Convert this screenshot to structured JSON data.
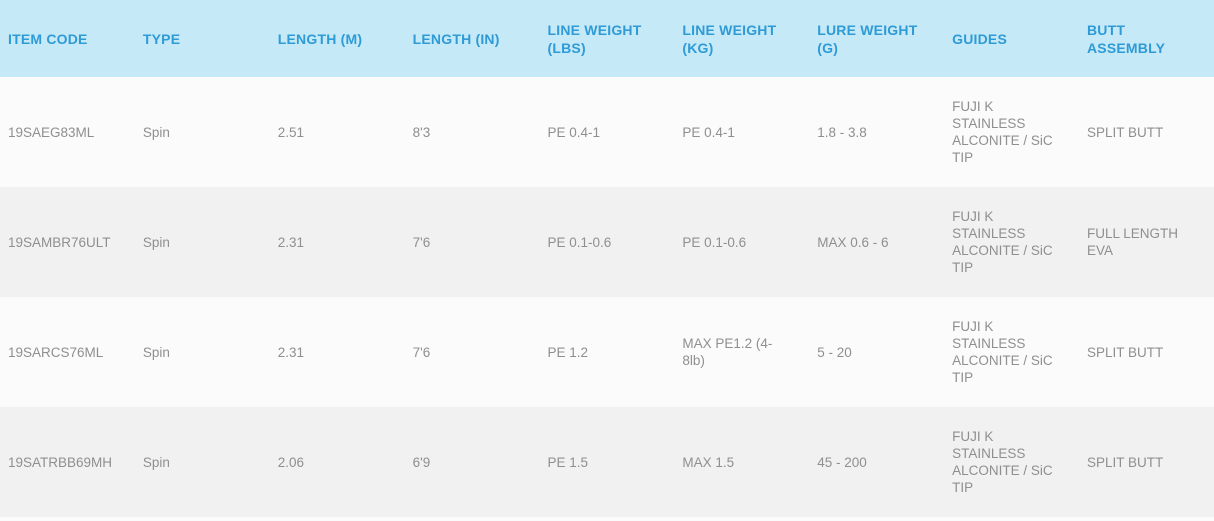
{
  "table": {
    "columns": [
      {
        "key": "item_code",
        "label": "ITEM CODE"
      },
      {
        "key": "type",
        "label": "TYPE"
      },
      {
        "key": "length_m",
        "label": "LENGTH (M)"
      },
      {
        "key": "length_in",
        "label": "LENGTH (IN)"
      },
      {
        "key": "line_weight_lbs",
        "label": "LINE WEIGHT (LBS)"
      },
      {
        "key": "line_weight_kg",
        "label": "LINE WEIGHT (KG)"
      },
      {
        "key": "lure_weight_g",
        "label": "LURE WEIGHT (G)"
      },
      {
        "key": "guides",
        "label": "GUIDES"
      },
      {
        "key": "butt_assembly",
        "label": "BUTT ASSEMBLY"
      }
    ],
    "rows": [
      [
        "19SAEG83ML",
        "Spin",
        "2.51",
        "8'3",
        "PE 0.4-1",
        "PE 0.4-1",
        "1.8 - 3.8",
        "FUJI K STAINLESS ALCONITE / SiC TIP",
        "SPLIT BUTT"
      ],
      [
        "19SAMBR76ULT",
        "Spin",
        "2.31",
        "7'6",
        "PE 0.1-0.6",
        "PE 0.1-0.6",
        "MAX 0.6 - 6",
        "FUJI K STAINLESS ALCONITE / SiC TIP",
        "FULL LENGTH EVA"
      ],
      [
        "19SARCS76ML",
        "Spin",
        "2.31",
        "7'6",
        "PE 1.2",
        "MAX PE1.2 (4-8lb)",
        "5 - 20",
        "FUJI K STAINLESS ALCONITE / SiC TIP",
        "SPLIT BUTT"
      ],
      [
        "19SATRBB69MH",
        "Spin",
        "2.06",
        "6'9",
        "PE 1.5",
        "MAX 1.5",
        "45 - 200",
        "FUJI K STAINLESS ALCONITE / SiC TIP",
        "SPLIT BUTT"
      ]
    ]
  },
  "colors": {
    "header_bg": "#c6e9f7",
    "header_text": "#2e9bd6",
    "body_text": "#8f8f8f",
    "row_odd_bg": "#fbfbfb",
    "row_even_bg": "#f1f1f1"
  }
}
